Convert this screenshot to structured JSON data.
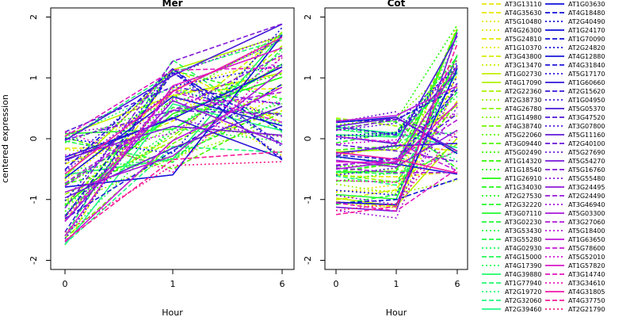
{
  "chart_data": [
    {
      "type": "line",
      "title": "Mer",
      "xlabel": "Hour",
      "ylabel": "centered expression",
      "categories": [
        "0",
        "1",
        "6"
      ],
      "ylim": [
        -2.15,
        2.15
      ],
      "yticks": [
        -2,
        -1,
        0,
        1,
        2
      ],
      "grid": false
    },
    {
      "type": "line",
      "title": "Cot",
      "xlabel": "Hour",
      "ylabel": "",
      "categories": [
        "0",
        "1",
        "6"
      ],
      "ylim": [
        -2.15,
        2.15
      ],
      "yticks": [
        -2,
        -1,
        0,
        1,
        2
      ],
      "grid": false
    }
  ],
  "legend": {
    "placement": "right",
    "column1": [
      {
        "label": "AT3G13110",
        "color": "#e8e800",
        "dash": "dashed"
      },
      {
        "label": "AT4G35630",
        "color": "#e8e800",
        "dash": "dashed"
      },
      {
        "label": "AT5G10480",
        "color": "#e8e800",
        "dash": "dotted"
      },
      {
        "label": "AT4G26300",
        "color": "#e8e800",
        "dash": "dotted"
      },
      {
        "label": "AT5G24810",
        "color": "#e8e800",
        "dash": "dashed"
      },
      {
        "label": "AT1G10370",
        "color": "#e8e800",
        "dash": "dotted"
      },
      {
        "label": "AT3G43800",
        "color": "#d4ee00",
        "dash": "dashed"
      },
      {
        "label": "AT3G13470",
        "color": "#c8f000",
        "dash": "dotted"
      },
      {
        "label": "AT1G02730",
        "color": "#c0f000",
        "dash": "solid"
      },
      {
        "label": "AT4G17090",
        "color": "#b0f200",
        "dash": "solid"
      },
      {
        "label": "AT2G22360",
        "color": "#a8f400",
        "dash": "dashed"
      },
      {
        "label": "AT2G38730",
        "color": "#98f400",
        "dash": "dotted"
      },
      {
        "label": "AT4G26780",
        "color": "#90f600",
        "dash": "dashed"
      },
      {
        "label": "AT1G14980",
        "color": "#80f600",
        "dash": "dotted"
      },
      {
        "label": "AT4G38740",
        "color": "#70f800",
        "dash": "dashed"
      },
      {
        "label": "AT5G22060",
        "color": "#60f800",
        "dash": "dotted"
      },
      {
        "label": "AT3G09440",
        "color": "#50f800",
        "dash": "dashed"
      },
      {
        "label": "AT5G02490",
        "color": "#40fa00",
        "dash": "dotted"
      },
      {
        "label": "AT1G14320",
        "color": "#30fa00",
        "dash": "dashed"
      },
      {
        "label": "AT1G18540",
        "color": "#22fa08",
        "dash": "dotted"
      },
      {
        "label": "AT1G26910",
        "color": "#22fa10",
        "dash": "solid"
      },
      {
        "label": "AT1G34030",
        "color": "#22fa18",
        "dash": "dashed"
      },
      {
        "label": "AT2G27530",
        "color": "#22fa20",
        "dash": "dotted"
      },
      {
        "label": "AT2G32220",
        "color": "#22fa28",
        "dash": "dashed"
      },
      {
        "label": "AT3G07110",
        "color": "#22fa30",
        "dash": "solid"
      },
      {
        "label": "AT3G02230",
        "color": "#22fa38",
        "dash": "dashed"
      },
      {
        "label": "AT3G53430",
        "color": "#22fa40",
        "dash": "dotted"
      },
      {
        "label": "AT3G55280",
        "color": "#22fa48",
        "dash": "dashed"
      },
      {
        "label": "AT4G02930",
        "color": "#22fa50",
        "dash": "dotted"
      },
      {
        "label": "AT4G15000",
        "color": "#22fa58",
        "dash": "dashed"
      },
      {
        "label": "AT4G17390",
        "color": "#22fa60",
        "dash": "dotted"
      },
      {
        "label": "AT4G39880",
        "color": "#22fa68",
        "dash": "solid"
      },
      {
        "label": "AT1G77940",
        "color": "#22fa70",
        "dash": "dashed"
      },
      {
        "label": "AT2G19720",
        "color": "#22fa78",
        "dash": "dotted"
      },
      {
        "label": "AT2G32060",
        "color": "#22fa80",
        "dash": "dashed"
      },
      {
        "label": "AT2G39460",
        "color": "#22fa88",
        "dash": "solid"
      }
    ],
    "column2": [
      {
        "label": "AT1G03630",
        "color": "#1010d8",
        "dash": "solid"
      },
      {
        "label": "AT4G18480",
        "color": "#1010d8",
        "dash": "dashed"
      },
      {
        "label": "AT2G40490",
        "color": "#1010d8",
        "dash": "dotted"
      },
      {
        "label": "AT1G24170",
        "color": "#1010d8",
        "dash": "solid"
      },
      {
        "label": "AT1G70090",
        "color": "#1010d8",
        "dash": "dashed"
      },
      {
        "label": "AT2G24820",
        "color": "#1010d8",
        "dash": "dotted"
      },
      {
        "label": "AT4G12880",
        "color": "#1818d8",
        "dash": "solid"
      },
      {
        "label": "AT4G31840",
        "color": "#2018d8",
        "dash": "dashed"
      },
      {
        "label": "AT5G17170",
        "color": "#2818d8",
        "dash": "dotted"
      },
      {
        "label": "AT1G60660",
        "color": "#3018d8",
        "dash": "solid"
      },
      {
        "label": "AT2G15620",
        "color": "#3818d8",
        "dash": "dashed"
      },
      {
        "label": "AT1G04950",
        "color": "#4018d8",
        "dash": "dotted"
      },
      {
        "label": "AT5G05370",
        "color": "#4818d8",
        "dash": "solid"
      },
      {
        "label": "AT3G47520",
        "color": "#5018d8",
        "dash": "dashed"
      },
      {
        "label": "AT3G07800",
        "color": "#5818d8",
        "dash": "dotted"
      },
      {
        "label": "AT5G11160",
        "color": "#6018d8",
        "dash": "solid"
      },
      {
        "label": "AT2G40100",
        "color": "#6818d8",
        "dash": "dashed"
      },
      {
        "label": "AT5G27690",
        "color": "#7018d8",
        "dash": "dotted"
      },
      {
        "label": "AT5G54270",
        "color": "#7818d8",
        "dash": "solid"
      },
      {
        "label": "AT5G16760",
        "color": "#8018d8",
        "dash": "dashed"
      },
      {
        "label": "AT5G55480",
        "color": "#8818d8",
        "dash": "dotted"
      },
      {
        "label": "AT3G24495",
        "color": "#9018d8",
        "dash": "solid"
      },
      {
        "label": "AT2G24490",
        "color": "#9818d8",
        "dash": "dashed"
      },
      {
        "label": "AT3G46940",
        "color": "#a018d8",
        "dash": "dotted"
      },
      {
        "label": "AT5G03300",
        "color": "#a818d8",
        "dash": "solid"
      },
      {
        "label": "AT3G27060",
        "color": "#b018d8",
        "dash": "dashed"
      },
      {
        "label": "AT5G18400",
        "color": "#b818d8",
        "dash": "dotted"
      },
      {
        "label": "AT1G63650",
        "color": "#c018d8",
        "dash": "solid"
      },
      {
        "label": "AT5G78600",
        "color": "#c818d8",
        "dash": "dashed"
      },
      {
        "label": "AT5G52010",
        "color": "#d018d0",
        "dash": "dotted"
      },
      {
        "label": "AT1G57820",
        "color": "#d818c8",
        "dash": "solid"
      },
      {
        "label": "AT3G14740",
        "color": "#e018c0",
        "dash": "dashed"
      },
      {
        "label": "AT3G34610",
        "color": "#e818b8",
        "dash": "dotted"
      },
      {
        "label": "AT4G31805",
        "color": "#f018a8",
        "dash": "solid"
      },
      {
        "label": "AT4G37750",
        "color": "#f81898",
        "dash": "dashed"
      },
      {
        "label": "AT2G21790",
        "color": "#f81888",
        "dash": "dotted"
      }
    ]
  }
}
